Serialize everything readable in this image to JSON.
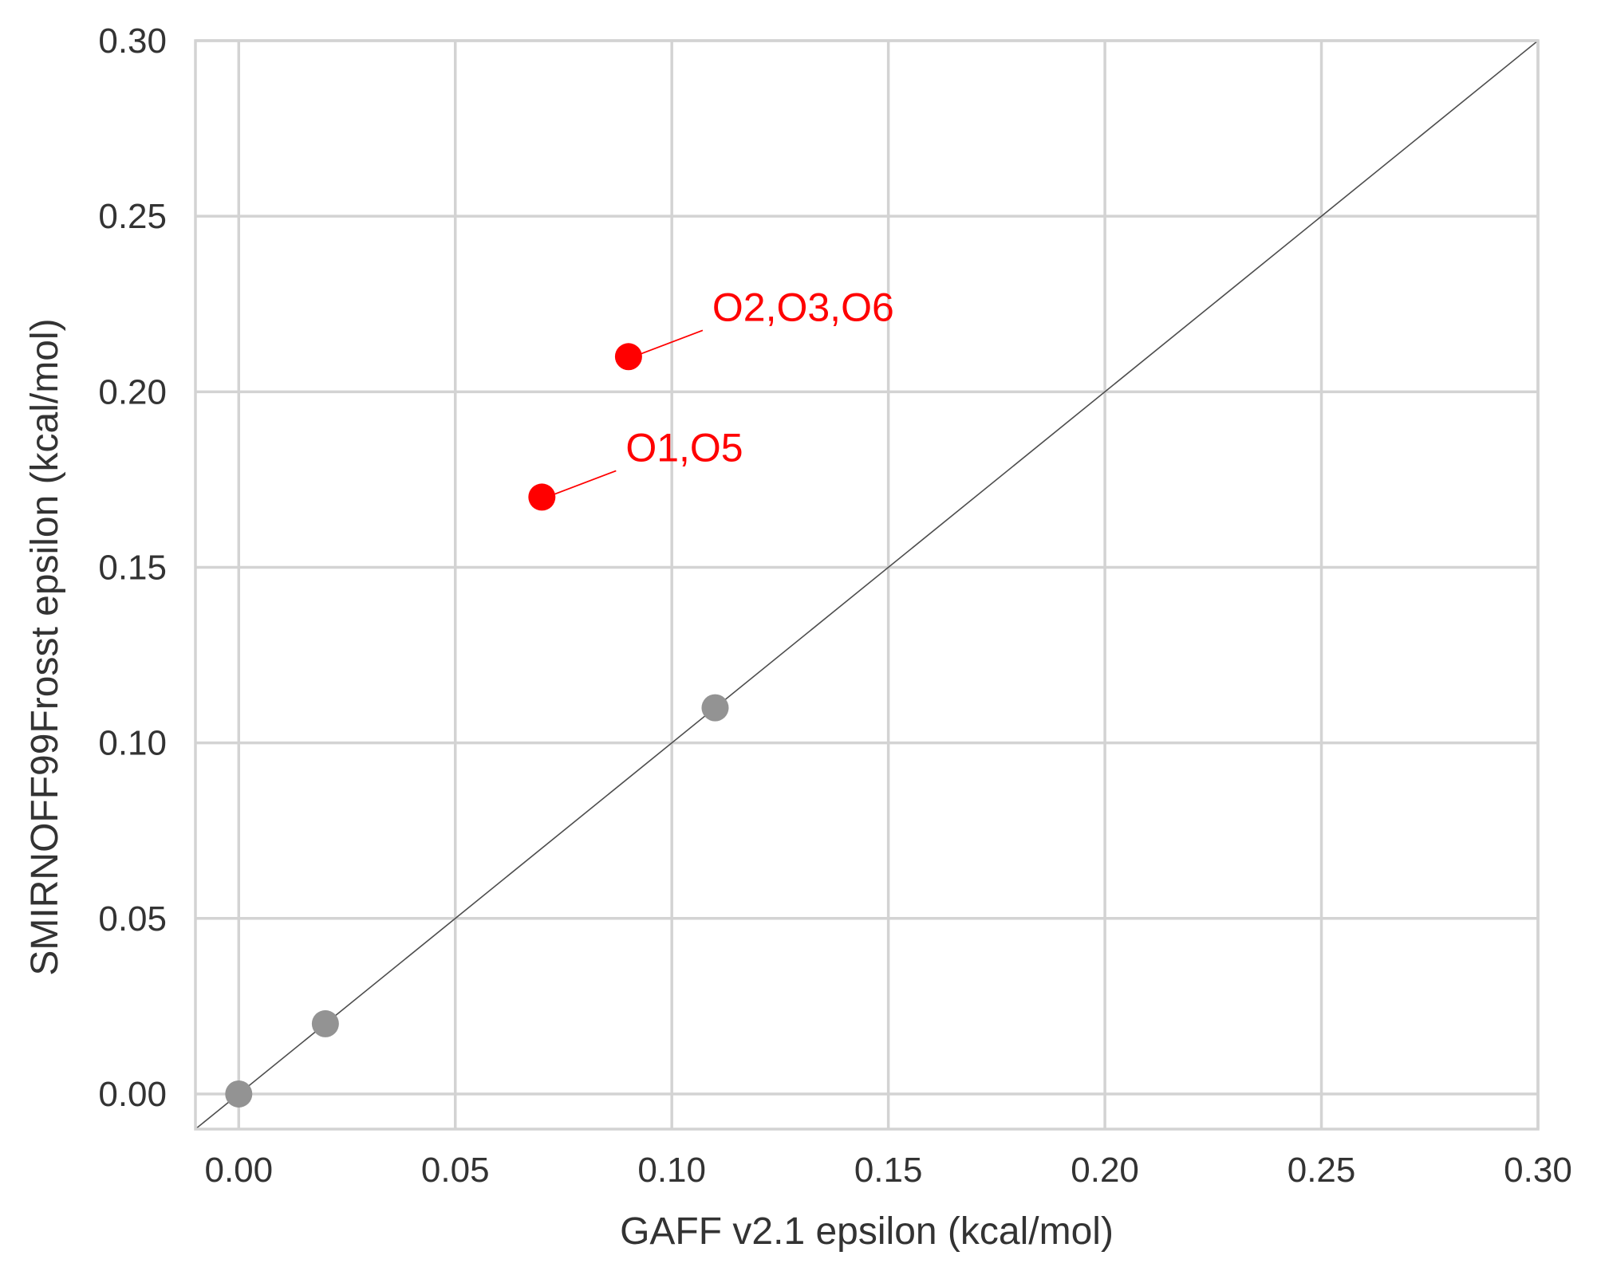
{
  "chart_data": {
    "type": "scatter",
    "title": "",
    "xlabel": "GAFF v2.1 epsilon (kcal/mol)",
    "ylabel": "SMIRNOFF99Frosst epsilon (kcal/mol)",
    "xlim": [
      -0.01,
      0.3
    ],
    "ylim": [
      -0.01,
      0.3
    ],
    "xticks": [
      0.0,
      0.05,
      0.1,
      0.15,
      0.2,
      0.25,
      0.3
    ],
    "yticks": [
      0.0,
      0.05,
      0.1,
      0.15,
      0.2,
      0.25,
      0.3
    ],
    "xtick_labels": [
      "0.00",
      "0.05",
      "0.10",
      "0.15",
      "0.20",
      "0.25",
      "0.30"
    ],
    "ytick_labels": [
      "0.00",
      "0.05",
      "0.10",
      "0.15",
      "0.20",
      "0.25",
      "0.30"
    ],
    "grid": true,
    "legend": "none",
    "reference_line": "y = x",
    "points": [
      {
        "x": 0.0,
        "y": 0.0,
        "color": "#939393"
      },
      {
        "x": 0.02,
        "y": 0.02,
        "color": "#939393"
      },
      {
        "x": 0.11,
        "y": 0.11,
        "color": "#939393"
      },
      {
        "x": 0.07,
        "y": 0.17,
        "color": "#ff0000",
        "label": "O1,O5"
      },
      {
        "x": 0.09,
        "y": 0.21,
        "color": "#ff0000",
        "label": "O2,O3,O6"
      }
    ],
    "colors": {
      "grid": "#d3d3d3",
      "frame": "#d3d3d3",
      "diagonal": "#4d4d4d",
      "text": "#333333",
      "highlight": "#ff0000",
      "neutral": "#939393"
    }
  }
}
